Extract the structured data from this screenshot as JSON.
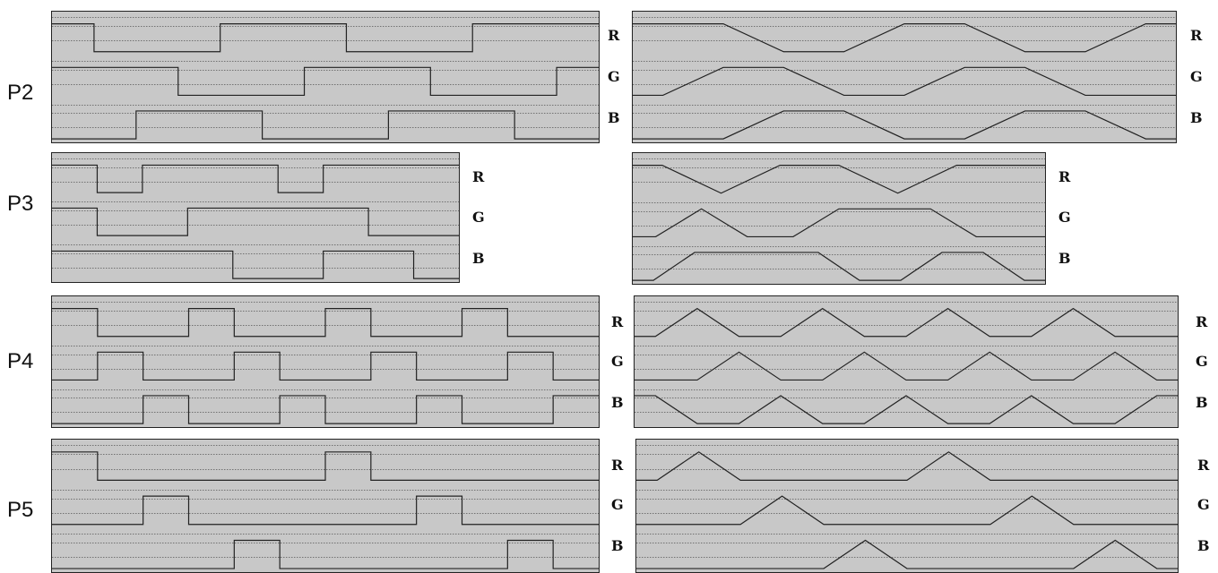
{
  "rows": [
    {
      "label": "P2",
      "channels": [
        "R",
        "G",
        "B"
      ],
      "square": {
        "width": 612,
        "waves": [
          [
            1,
            0,
            0,
            0,
            1,
            1,
            1,
            0,
            0,
            0,
            1,
            1,
            1
          ],
          [
            1,
            1,
            1,
            0,
            0,
            0,
            1,
            1,
            1,
            0,
            0,
            0,
            1
          ],
          [
            0,
            0,
            1,
            1,
            1,
            0,
            0,
            0,
            1,
            1,
            1,
            0,
            0
          ]
        ]
      },
      "tri": {
        "width": 608,
        "waves": [
          [
            1,
            1,
            0,
            0,
            1,
            1,
            0,
            0,
            1
          ],
          [
            0,
            1,
            1,
            0,
            0,
            1,
            1,
            0,
            0
          ],
          [
            0,
            0,
            1,
            1,
            0,
            0,
            1,
            1,
            0
          ]
        ]
      }
    },
    {
      "label": "P3",
      "channels": [
        "R",
        "G",
        "B"
      ],
      "square": {
        "width": 456,
        "waves": [
          [
            1,
            0,
            1,
            1,
            1,
            0,
            1,
            1,
            1
          ],
          [
            1,
            0,
            0,
            1,
            1,
            1,
            1,
            0,
            0
          ],
          [
            1,
            1,
            1,
            1,
            0,
            0,
            1,
            1,
            0
          ]
        ]
      },
      "tri": {
        "width": 462,
        "waves": [
          [
            1,
            0,
            1,
            1,
            0,
            1,
            1
          ],
          [
            0,
            1,
            0,
            0,
            1,
            1,
            1,
            0,
            0
          ],
          [
            0,
            1,
            1,
            1,
            1,
            0,
            0,
            1,
            1,
            0
          ]
        ]
      }
    },
    {
      "label": "P4",
      "channels": [
        "R",
        "G",
        "B"
      ],
      "square": {
        "width": 608,
        "waves": [
          [
            1,
            0,
            0,
            1,
            0,
            0,
            1,
            0,
            0,
            1,
            0,
            0
          ],
          [
            0,
            1,
            0,
            0,
            1,
            0,
            0,
            1,
            0,
            0,
            1,
            0
          ],
          [
            0,
            0,
            1,
            0,
            0,
            1,
            0,
            0,
            1,
            0,
            0,
            1
          ]
        ]
      },
      "tri": {
        "width": 608,
        "waves": [
          [
            0,
            1,
            0,
            0,
            1,
            0,
            0,
            1,
            0,
            0,
            1,
            0,
            0
          ],
          [
            0,
            0,
            1,
            0,
            0,
            1,
            0,
            0,
            1,
            0,
            0,
            1,
            0
          ],
          [
            1,
            0,
            0,
            1,
            0,
            0,
            1,
            0,
            0,
            1,
            0,
            0,
            1
          ]
        ]
      }
    },
    {
      "label": "P5",
      "channels": [
        "R",
        "G",
        "B"
      ],
      "square": {
        "width": 608,
        "waves": [
          [
            1,
            0,
            0,
            0,
            0,
            0,
            1,
            0,
            0,
            0,
            0,
            0
          ],
          [
            0,
            0,
            1,
            0,
            0,
            0,
            0,
            0,
            1,
            0,
            0,
            0
          ],
          [
            0,
            0,
            0,
            0,
            1,
            0,
            0,
            0,
            0,
            0,
            1,
            0
          ]
        ]
      },
      "tri": {
        "width": 608,
        "waves": [
          [
            0,
            1,
            0,
            0,
            0,
            0,
            0,
            1,
            0,
            0,
            0,
            0,
            0
          ],
          [
            0,
            0,
            0,
            1,
            0,
            0,
            0,
            0,
            0,
            1,
            0,
            0,
            0
          ],
          [
            0,
            0,
            0,
            0,
            0,
            1,
            0,
            0,
            0,
            0,
            0,
            1,
            0
          ]
        ]
      }
    }
  ]
}
